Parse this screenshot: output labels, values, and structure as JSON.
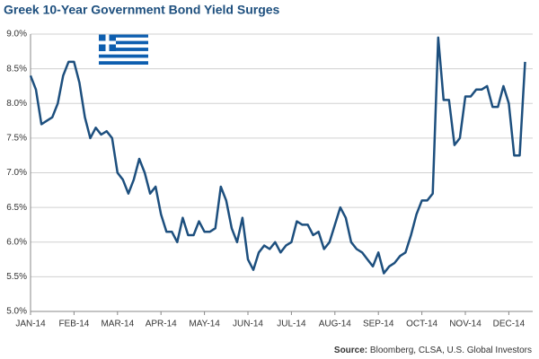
{
  "chart_data": {
    "type": "line",
    "title": "Greek 10-Year Government Bond Yield Surges",
    "source_label": "Source:",
    "source": "Bloomberg, CLSA, U.S. Global Investors",
    "categories": [
      "JAN-14",
      null,
      null,
      null,
      null,
      null,
      null,
      null,
      "FEB-14",
      null,
      null,
      null,
      null,
      null,
      null,
      null,
      "MAR-14",
      null,
      null,
      null,
      null,
      null,
      null,
      null,
      "APR-14",
      null,
      null,
      null,
      null,
      null,
      null,
      null,
      "MAY-14",
      null,
      null,
      null,
      null,
      null,
      null,
      null,
      "JUN-14",
      null,
      null,
      null,
      null,
      null,
      null,
      null,
      "JUL-14",
      null,
      null,
      null,
      null,
      null,
      null,
      null,
      "AUG-14",
      null,
      null,
      null,
      null,
      null,
      null,
      null,
      "SEP-14",
      null,
      null,
      null,
      null,
      null,
      null,
      null,
      "OCT-14",
      null,
      null,
      null,
      null,
      null,
      null,
      null,
      "NOV-14",
      null,
      null,
      null,
      null,
      null,
      null,
      null,
      "DEC-14",
      null,
      null,
      null
    ],
    "values": [
      8.4,
      8.2,
      7.7,
      7.75,
      7.8,
      8.0,
      8.4,
      8.6,
      8.6,
      8.3,
      7.8,
      7.5,
      7.65,
      7.55,
      7.6,
      7.5,
      7.0,
      6.9,
      6.7,
      6.9,
      7.2,
      7.0,
      6.7,
      6.8,
      6.4,
      6.15,
      6.15,
      6.0,
      6.35,
      6.1,
      6.1,
      6.3,
      6.15,
      6.15,
      6.2,
      6.8,
      6.6,
      6.2,
      6.0,
      6.35,
      5.75,
      5.6,
      5.85,
      5.95,
      5.9,
      6.0,
      5.85,
      5.95,
      6.0,
      6.3,
      6.25,
      6.25,
      6.1,
      6.15,
      5.9,
      6.0,
      6.25,
      6.5,
      6.35,
      6.0,
      5.9,
      5.85,
      5.75,
      5.65,
      5.85,
      5.55,
      5.65,
      5.7,
      5.8,
      5.85,
      6.1,
      6.4,
      6.6,
      6.6,
      6.7,
      8.95,
      8.05,
      8.05,
      7.4,
      7.5,
      8.1,
      8.1,
      8.2,
      8.2,
      8.25,
      7.95,
      7.95,
      8.25,
      8.0,
      7.25,
      7.25,
      8.6
    ],
    "color": "#1d4f7e",
    "ylim": [
      5,
      9
    ],
    "yticks": [
      {
        "value": 5,
        "label": "5.0%"
      },
      {
        "value": 5.5,
        "label": "5.5%"
      },
      {
        "value": 6,
        "label": "6.0%"
      },
      {
        "value": 6.5,
        "label": "6.5%"
      },
      {
        "value": 7,
        "label": "7.0%"
      },
      {
        "value": 7.5,
        "label": "7.5%"
      },
      {
        "value": 8,
        "label": "8.0%"
      },
      {
        "value": 8.5,
        "label": "8.5%"
      },
      {
        "value": 9,
        "label": "9.0%"
      }
    ],
    "grid": true
  }
}
